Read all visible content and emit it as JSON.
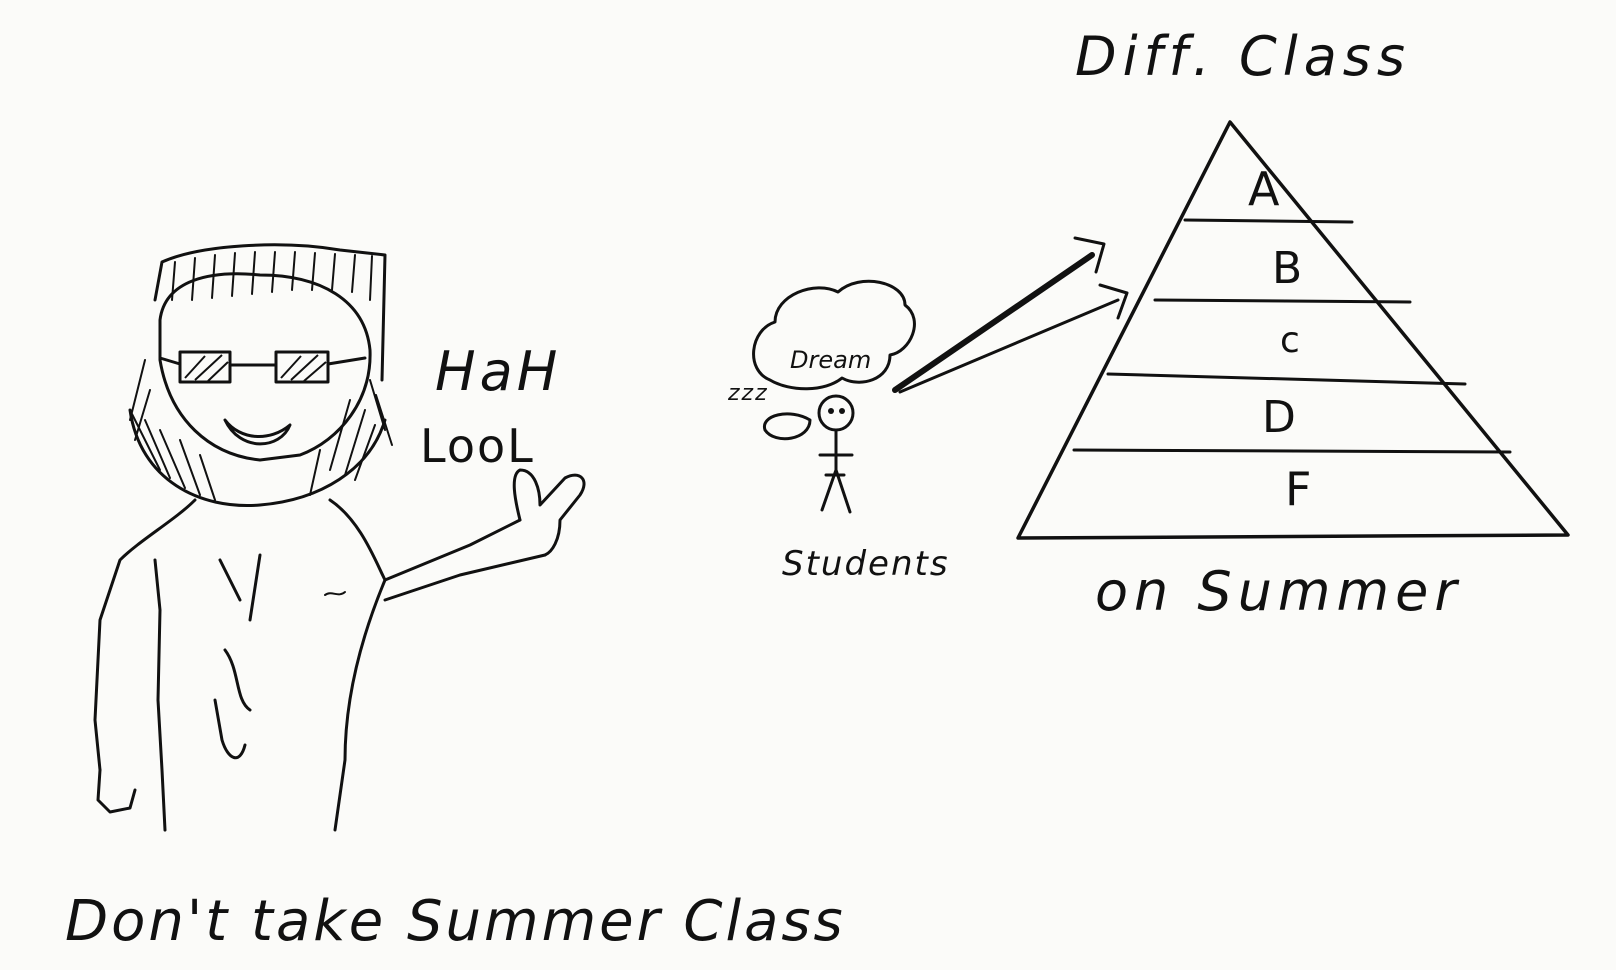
{
  "title": "Diff. Class",
  "caption": "Don't take Summer Class",
  "teacher_speech": {
    "line1": "HaH",
    "line2": "LooL"
  },
  "student": {
    "label": "Students",
    "dream": "Dream",
    "snore": "zzz"
  },
  "pyramid": {
    "levels": [
      "A",
      "B",
      "c",
      "D",
      "F"
    ],
    "caption": "on Summer"
  },
  "colors": {
    "ink": "#111111",
    "paper": "#fbfbf9"
  }
}
